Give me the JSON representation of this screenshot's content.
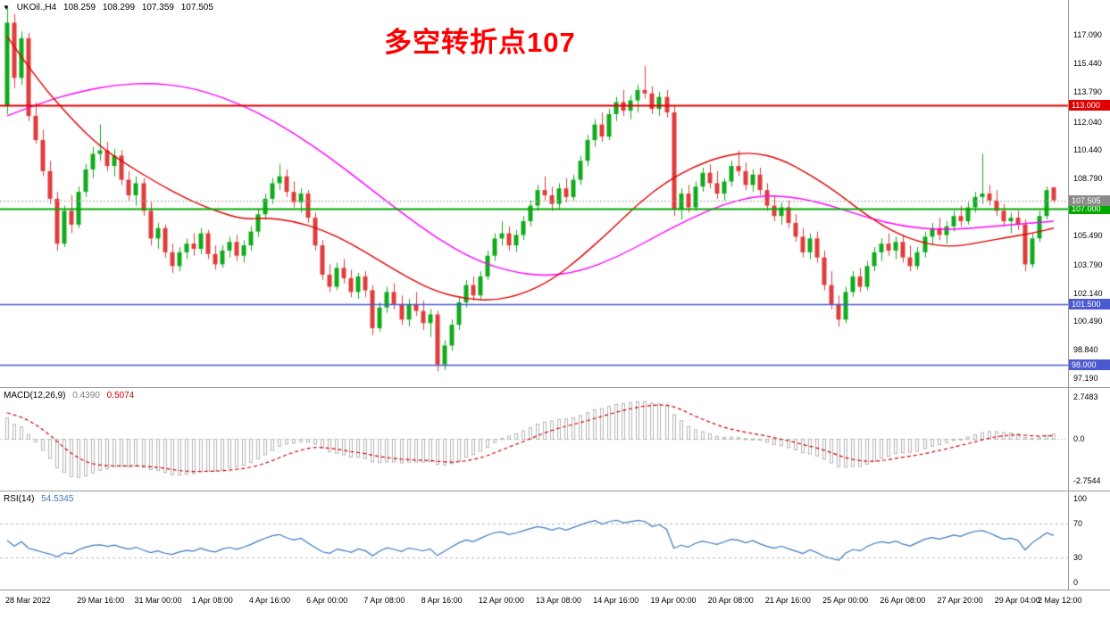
{
  "window": {
    "symbol_readout": "UKOil.,H4",
    "ohlc": {
      "open": "108.259",
      "high": "108.299",
      "low": "107.359",
      "close": "107.505"
    }
  },
  "annotation": {
    "text": "多空转折点107"
  },
  "macd_panel": {
    "title": "MACD(12,26,9)",
    "value_main": "0.4390",
    "value_signal": "0.5074",
    "axis_labels": [
      "2.7483",
      "0.0",
      "-2.7544"
    ]
  },
  "rsi_panel": {
    "title": "RSI(14)",
    "value": "54.5345",
    "axis_labels": [
      "100",
      "70",
      "30",
      "0"
    ],
    "levels": [
      70,
      30
    ]
  },
  "colors": {
    "up": "#10ab1c",
    "down": "#e03c3c",
    "ma_fast": "#e00000",
    "ma_slow": "#ff00ff",
    "current_price_line": "#a0a0a0",
    "current_price_label_bg": "#8a8a8a",
    "macd_hist": "#b4b4b4",
    "macd_signal": "#d20000",
    "macd_value_text": "#808080",
    "rsi_line": "#3c78c0",
    "rsi_level_dash": "#b8b8b8",
    "annotation": "#ff0000",
    "background": "#ffffff"
  },
  "chart_data": {
    "type": "candlestick",
    "symbol": "UKOil.",
    "timeframe": "H4",
    "title": "UKOil. H4 with MACD(12,26,9) and RSI(14)",
    "y_range": [
      97.0,
      118.7
    ],
    "price_ticks": [
      "117.090",
      "115.440",
      "113.790",
      "112.040",
      "110.440",
      "108.790",
      "105.490",
      "103.790",
      "102.140",
      "100.490",
      "98.840",
      "97.190"
    ],
    "levels": [
      {
        "value": 113.0,
        "label": "113.000",
        "color": "#e00000",
        "width": 2
      },
      {
        "value": 107.0,
        "label": "107.000",
        "color": "#00a800",
        "width": 2
      },
      {
        "value": 101.5,
        "label": "101.500",
        "color": "#4c5ad2",
        "width": 1.6
      },
      {
        "value": 98.0,
        "label": "98.000",
        "color": "#4c5ad2",
        "width": 1.6
      }
    ],
    "current_price": {
      "value": 107.505,
      "label": "107.505"
    },
    "time_labels": [
      {
        "i": 0,
        "t": "28 Mar 2022"
      },
      {
        "i": 10,
        "t": "29 Mar 16:00"
      },
      {
        "i": 18,
        "t": "31 Mar 00:00"
      },
      {
        "i": 26,
        "t": "1 Apr 08:00"
      },
      {
        "i": 34,
        "t": "4 Apr 16:00"
      },
      {
        "i": 42,
        "t": "6 Apr 00:00"
      },
      {
        "i": 50,
        "t": "7 Apr 08:00"
      },
      {
        "i": 58,
        "t": "8 Apr 16:00"
      },
      {
        "i": 66,
        "t": "12 Apr 00:00"
      },
      {
        "i": 74,
        "t": "13 Apr 08:00"
      },
      {
        "i": 82,
        "t": "14 Apr 16:00"
      },
      {
        "i": 90,
        "t": "19 Apr 00:00"
      },
      {
        "i": 98,
        "t": "20 Apr 08:00"
      },
      {
        "i": 106,
        "t": "21 Apr 16:00"
      },
      {
        "i": 114,
        "t": "25 Apr 00:00"
      },
      {
        "i": 122,
        "t": "26 Apr 08:00"
      },
      {
        "i": 130,
        "t": "27 Apr 20:00"
      },
      {
        "i": 138,
        "t": "29 Apr 04:00"
      },
      {
        "i": 144,
        "t": "2 May 12:00"
      }
    ],
    "ma_fast": {
      "color": "#e00000",
      "points": [
        [
          0,
          117.0
        ],
        [
          4,
          114.6
        ],
        [
          9,
          112.2
        ],
        [
          13,
          110.6
        ],
        [
          17,
          109.5
        ],
        [
          21,
          108.5
        ],
        [
          25,
          107.6
        ],
        [
          29,
          106.9
        ],
        [
          33,
          106.4
        ],
        [
          36,
          106.5
        ],
        [
          40,
          106.3
        ],
        [
          44,
          105.8
        ],
        [
          48,
          105.0
        ],
        [
          52,
          104.0
        ],
        [
          56,
          103.0
        ],
        [
          60,
          102.2
        ],
        [
          64,
          101.8
        ],
        [
          68,
          101.7
        ],
        [
          72,
          102.1
        ],
        [
          76,
          102.9
        ],
        [
          80,
          104.2
        ],
        [
          84,
          105.7
        ],
        [
          88,
          107.3
        ],
        [
          92,
          108.6
        ],
        [
          96,
          109.5
        ],
        [
          100,
          110.1
        ],
        [
          104,
          110.3
        ],
        [
          108,
          109.9
        ],
        [
          112,
          109.0
        ],
        [
          116,
          107.9
        ],
        [
          120,
          106.6
        ],
        [
          124,
          105.6
        ],
        [
          128,
          105.0
        ],
        [
          132,
          104.8
        ],
        [
          136,
          105.1
        ],
        [
          140,
          105.4
        ],
        [
          143,
          105.6
        ],
        [
          146,
          105.9
        ]
      ]
    },
    "ma_slow": {
      "color": "#ff00ff",
      "points": [
        [
          0,
          112.4
        ],
        [
          5,
          113.2
        ],
        [
          10,
          113.8
        ],
        [
          15,
          114.2
        ],
        [
          20,
          114.3
        ],
        [
          25,
          114.1
        ],
        [
          30,
          113.5
        ],
        [
          35,
          112.6
        ],
        [
          40,
          111.4
        ],
        [
          45,
          110.0
        ],
        [
          50,
          108.4
        ],
        [
          55,
          106.8
        ],
        [
          60,
          105.3
        ],
        [
          65,
          104.1
        ],
        [
          70,
          103.4
        ],
        [
          75,
          103.1
        ],
        [
          80,
          103.4
        ],
        [
          85,
          104.2
        ],
        [
          90,
          105.3
        ],
        [
          95,
          106.4
        ],
        [
          100,
          107.3
        ],
        [
          105,
          107.8
        ],
        [
          110,
          107.7
        ],
        [
          115,
          107.2
        ],
        [
          120,
          106.5
        ],
        [
          125,
          106.0
        ],
        [
          130,
          105.8
        ],
        [
          135,
          105.9
        ],
        [
          140,
          106.1
        ],
        [
          146,
          106.3
        ]
      ]
    },
    "candles": [
      [
        113.0,
        118.7,
        112.5,
        117.8
      ],
      [
        117.8,
        118.3,
        114.0,
        114.6
      ],
      [
        114.6,
        117.3,
        114.2,
        116.9
      ],
      [
        116.9,
        117.2,
        112.1,
        112.4
      ],
      [
        112.4,
        113.2,
        110.8,
        111.0
      ],
      [
        111.0,
        111.6,
        108.9,
        109.2
      ],
      [
        109.2,
        109.8,
        107.3,
        107.6
      ],
      [
        107.6,
        108.0,
        104.6,
        105.0
      ],
      [
        105.0,
        107.2,
        104.8,
        106.9
      ],
      [
        106.9,
        107.8,
        105.6,
        106.1
      ],
      [
        106.1,
        108.3,
        105.9,
        108.0
      ],
      [
        108.0,
        109.6,
        107.7,
        109.3
      ],
      [
        109.3,
        110.6,
        108.8,
        110.2
      ],
      [
        110.2,
        111.9,
        109.8,
        110.4
      ],
      [
        110.4,
        110.9,
        109.2,
        109.5
      ],
      [
        109.5,
        110.5,
        108.9,
        110.1
      ],
      [
        110.1,
        110.4,
        108.4,
        108.7
      ],
      [
        108.7,
        109.2,
        107.5,
        107.8
      ],
      [
        107.8,
        108.9,
        107.2,
        108.5
      ],
      [
        108.5,
        108.8,
        106.6,
        106.9
      ],
      [
        106.9,
        107.4,
        104.9,
        105.3
      ],
      [
        105.3,
        106.2,
        104.7,
        105.9
      ],
      [
        105.9,
        106.1,
        104.2,
        104.5
      ],
      [
        104.5,
        105.0,
        103.3,
        103.7
      ],
      [
        103.7,
        104.8,
        103.4,
        104.5
      ],
      [
        104.5,
        105.3,
        104.1,
        105.0
      ],
      [
        105.0,
        105.6,
        104.3,
        104.7
      ],
      [
        104.7,
        105.9,
        104.4,
        105.6
      ],
      [
        105.6,
        105.8,
        104.1,
        104.4
      ],
      [
        104.4,
        104.9,
        103.5,
        103.8
      ],
      [
        103.8,
        104.9,
        103.6,
        104.6
      ],
      [
        104.6,
        105.4,
        104.2,
        105.1
      ],
      [
        105.1,
        105.5,
        104.0,
        104.3
      ],
      [
        104.3,
        105.2,
        103.9,
        104.9
      ],
      [
        104.9,
        106.0,
        104.6,
        105.7
      ],
      [
        105.7,
        107.0,
        105.4,
        106.7
      ],
      [
        106.7,
        107.9,
        106.4,
        107.6
      ],
      [
        107.6,
        108.8,
        107.3,
        108.5
      ],
      [
        108.5,
        109.6,
        108.1,
        108.9
      ],
      [
        108.9,
        109.3,
        107.7,
        108.0
      ],
      [
        108.0,
        108.6,
        107.1,
        107.4
      ],
      [
        107.4,
        108.2,
        106.8,
        107.9
      ],
      [
        107.9,
        108.1,
        106.2,
        106.5
      ],
      [
        106.5,
        106.8,
        104.6,
        104.9
      ],
      [
        104.9,
        105.2,
        102.9,
        103.2
      ],
      [
        103.2,
        103.8,
        102.2,
        102.5
      ],
      [
        102.5,
        103.9,
        102.3,
        103.6
      ],
      [
        103.6,
        104.1,
        102.7,
        103.0
      ],
      [
        103.0,
        103.5,
        101.9,
        102.2
      ],
      [
        102.2,
        103.3,
        101.8,
        103.1
      ],
      [
        103.1,
        103.4,
        101.9,
        102.3
      ],
      [
        102.3,
        102.6,
        99.7,
        100.1
      ],
      [
        100.1,
        101.6,
        99.9,
        101.3
      ],
      [
        101.3,
        102.5,
        101.0,
        102.2
      ],
      [
        102.2,
        102.7,
        101.2,
        101.5
      ],
      [
        101.5,
        102.0,
        100.3,
        100.6
      ],
      [
        100.6,
        101.8,
        100.2,
        101.5
      ],
      [
        101.5,
        102.2,
        100.8,
        101.1
      ],
      [
        101.1,
        101.7,
        100.0,
        100.4
      ],
      [
        100.4,
        101.2,
        99.6,
        100.9
      ],
      [
        100.9,
        101.1,
        97.6,
        98.0
      ],
      [
        98.0,
        99.4,
        97.7,
        99.1
      ],
      [
        99.1,
        100.6,
        98.8,
        100.3
      ],
      [
        100.3,
        101.9,
        100.0,
        101.6
      ],
      [
        101.6,
        102.9,
        101.3,
        102.6
      ],
      [
        102.6,
        103.1,
        101.7,
        102.0
      ],
      [
        102.0,
        103.4,
        101.8,
        103.1
      ],
      [
        103.1,
        104.6,
        102.9,
        104.3
      ],
      [
        104.3,
        105.6,
        104.0,
        105.3
      ],
      [
        105.3,
        106.3,
        104.9,
        105.6
      ],
      [
        105.6,
        106.0,
        104.6,
        104.9
      ],
      [
        104.9,
        105.8,
        104.5,
        105.5
      ],
      [
        105.5,
        106.6,
        105.2,
        106.3
      ],
      [
        106.3,
        107.5,
        106.0,
        107.2
      ],
      [
        107.2,
        108.4,
        106.9,
        108.1
      ],
      [
        108.1,
        108.9,
        107.5,
        107.8
      ],
      [
        107.8,
        108.3,
        106.9,
        107.3
      ],
      [
        107.3,
        108.5,
        107.0,
        108.2
      ],
      [
        108.2,
        108.8,
        107.4,
        107.7
      ],
      [
        107.7,
        109.0,
        107.5,
        108.7
      ],
      [
        108.7,
        110.1,
        108.4,
        109.8
      ],
      [
        109.8,
        111.3,
        109.5,
        111.0
      ],
      [
        111.0,
        112.2,
        110.6,
        111.9
      ],
      [
        111.9,
        112.6,
        110.9,
        111.2
      ],
      [
        111.2,
        112.8,
        111.0,
        112.5
      ],
      [
        112.5,
        113.5,
        112.1,
        113.2
      ],
      [
        113.2,
        113.9,
        112.4,
        112.7
      ],
      [
        112.7,
        113.6,
        112.2,
        113.3
      ],
      [
        113.3,
        114.2,
        112.6,
        113.9
      ],
      [
        113.9,
        115.3,
        113.4,
        113.7
      ],
      [
        113.7,
        114.1,
        112.5,
        112.8
      ],
      [
        112.8,
        113.8,
        112.4,
        113.5
      ],
      [
        113.5,
        113.9,
        112.3,
        112.6
      ],
      [
        112.6,
        113.0,
        106.6,
        107.0
      ],
      [
        107.0,
        108.2,
        106.4,
        107.9
      ],
      [
        107.9,
        108.4,
        106.8,
        107.1
      ],
      [
        107.1,
        108.6,
        106.9,
        108.3
      ],
      [
        108.3,
        109.4,
        108.0,
        109.1
      ],
      [
        109.1,
        109.6,
        108.2,
        108.5
      ],
      [
        108.5,
        109.2,
        107.6,
        107.9
      ],
      [
        107.9,
        108.8,
        107.5,
        108.6
      ],
      [
        108.6,
        109.8,
        108.3,
        109.5
      ],
      [
        109.5,
        110.4,
        108.9,
        109.2
      ],
      [
        109.2,
        109.7,
        108.1,
        108.4
      ],
      [
        108.4,
        109.3,
        108.0,
        109.0
      ],
      [
        109.0,
        109.4,
        107.8,
        108.1
      ],
      [
        108.1,
        108.5,
        106.9,
        107.2
      ],
      [
        107.2,
        107.8,
        106.3,
        106.6
      ],
      [
        106.6,
        107.4,
        106.1,
        107.1
      ],
      [
        107.1,
        107.5,
        105.9,
        106.2
      ],
      [
        106.2,
        106.7,
        105.1,
        105.4
      ],
      [
        105.4,
        105.9,
        104.2,
        104.5
      ],
      [
        104.5,
        105.6,
        104.1,
        105.3
      ],
      [
        105.3,
        105.7,
        103.9,
        104.2
      ],
      [
        104.2,
        104.6,
        102.3,
        102.6
      ],
      [
        102.6,
        103.4,
        101.2,
        101.5
      ],
      [
        101.5,
        102.0,
        100.2,
        100.6
      ],
      [
        100.6,
        102.5,
        100.4,
        102.2
      ],
      [
        102.2,
        103.4,
        101.9,
        103.1
      ],
      [
        103.1,
        103.6,
        102.2,
        102.5
      ],
      [
        102.5,
        104.0,
        102.3,
        103.7
      ],
      [
        103.7,
        104.8,
        103.4,
        104.5
      ],
      [
        104.5,
        105.3,
        104.0,
        105.0
      ],
      [
        105.0,
        105.6,
        104.3,
        104.6
      ],
      [
        104.6,
        105.4,
        104.1,
        105.1
      ],
      [
        105.1,
        105.5,
        103.9,
        104.2
      ],
      [
        104.2,
        104.9,
        103.4,
        103.7
      ],
      [
        103.7,
        104.8,
        103.5,
        104.5
      ],
      [
        104.5,
        105.7,
        104.2,
        105.4
      ],
      [
        105.4,
        106.2,
        104.9,
        105.9
      ],
      [
        105.9,
        106.5,
        105.2,
        105.5
      ],
      [
        105.5,
        106.3,
        105.0,
        106.0
      ],
      [
        106.0,
        106.9,
        105.7,
        106.6
      ],
      [
        106.6,
        107.2,
        106.0,
        106.3
      ],
      [
        106.3,
        107.4,
        106.1,
        107.1
      ],
      [
        107.1,
        108.0,
        106.8,
        107.7
      ],
      [
        107.7,
        110.2,
        107.3,
        107.9
      ],
      [
        107.9,
        108.4,
        107.2,
        107.5
      ],
      [
        107.5,
        108.1,
        106.6,
        106.9
      ],
      [
        106.9,
        107.3,
        106.0,
        106.3
      ],
      [
        106.3,
        106.8,
        105.6,
        106.5
      ],
      [
        106.5,
        106.9,
        105.8,
        106.1
      ],
      [
        106.1,
        106.4,
        103.4,
        103.8
      ],
      [
        103.8,
        105.6,
        103.6,
        105.3
      ],
      [
        105.3,
        106.9,
        105.1,
        106.6
      ],
      [
        106.6,
        108.3,
        106.4,
        108.1
      ],
      [
        108.259,
        108.299,
        107.359,
        107.505
      ]
    ]
  }
}
